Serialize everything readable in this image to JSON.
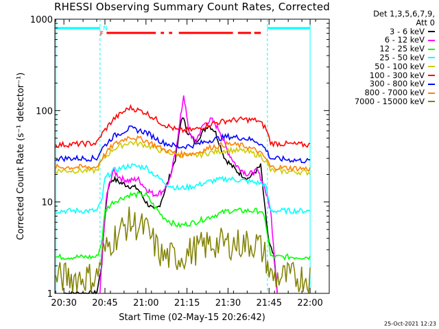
{
  "title": "RHESSI Observing Summary Count Rates, Corrected",
  "legend": {
    "header_line1": "Det 1,3,5,6,7,9,",
    "header_line2": "Att 0"
  },
  "timestamp": "25-Oct-2021 12:23",
  "chart_data": {
    "type": "line",
    "xlabel": "Start Time (02-May-15 20:26:42)",
    "ylabel": "Corrected Count Rate (s⁻¹ detector⁻¹)",
    "y_scale": "log",
    "ylim": [
      1,
      1000
    ],
    "y_ticks": [
      "1",
      "10",
      "100",
      "1000"
    ],
    "x_ticks": [
      "20:30",
      "20:45",
      "21:00",
      "21:15",
      "21:30",
      "21:45",
      "22:00"
    ],
    "xlim": [
      "20:26:42",
      "22:07:00"
    ],
    "grid": false,
    "legend_position": "right",
    "flags": {
      "N_label": "N",
      "F_label": "F",
      "night_color": "#00ffff",
      "flare_color": "#ff0000"
    },
    "series": [
      {
        "name": "3 - 6 keV",
        "color": "#000000",
        "points": [
          [
            20.5,
            1.0
          ],
          [
            20.7,
            1.0
          ],
          [
            20.73,
            2.0
          ],
          [
            20.75,
            7
          ],
          [
            20.77,
            15
          ],
          [
            20.8,
            18
          ],
          [
            20.85,
            16
          ],
          [
            20.9,
            15
          ],
          [
            20.95,
            14
          ],
          [
            21.0,
            10
          ],
          [
            21.05,
            8
          ],
          [
            21.08,
            9
          ],
          [
            21.12,
            14
          ],
          [
            21.18,
            30
          ],
          [
            21.22,
            90
          ],
          [
            21.25,
            60
          ],
          [
            21.3,
            45
          ],
          [
            21.38,
            70
          ],
          [
            21.42,
            60
          ],
          [
            21.48,
            30
          ],
          [
            21.55,
            22
          ],
          [
            21.62,
            18
          ],
          [
            21.65,
            20
          ],
          [
            21.7,
            25
          ],
          [
            21.72,
            10
          ],
          [
            21.75,
            3.5
          ],
          [
            21.78,
            2.5
          ],
          [
            21.8,
            1.0
          ]
        ]
      },
      {
        "name": "6 - 12 keV",
        "color": "#ff00ff",
        "points": [
          [
            20.72,
            1.0
          ],
          [
            20.74,
            4
          ],
          [
            20.76,
            12
          ],
          [
            20.8,
            22
          ],
          [
            20.85,
            18
          ],
          [
            20.9,
            17
          ],
          [
            20.95,
            18
          ],
          [
            21.0,
            14
          ],
          [
            21.05,
            12
          ],
          [
            21.1,
            13
          ],
          [
            21.15,
            18
          ],
          [
            21.2,
            60
          ],
          [
            21.23,
            150
          ],
          [
            21.26,
            60
          ],
          [
            21.3,
            45
          ],
          [
            21.35,
            70
          ],
          [
            21.4,
            80
          ],
          [
            21.45,
            60
          ],
          [
            21.5,
            35
          ],
          [
            21.55,
            25
          ],
          [
            21.62,
            20
          ],
          [
            21.68,
            22
          ],
          [
            21.72,
            15
          ],
          [
            21.76,
            8
          ],
          [
            21.78,
            3
          ],
          [
            21.8,
            1.0
          ]
        ]
      },
      {
        "name": "12 - 25 keV",
        "color": "#00ff00",
        "points": [
          [
            20.45,
            2.5
          ],
          [
            20.7,
            2.5
          ],
          [
            20.73,
            3.5
          ],
          [
            20.75,
            8
          ],
          [
            20.8,
            10
          ],
          [
            20.9,
            12
          ],
          [
            21.0,
            12
          ],
          [
            21.05,
            9
          ],
          [
            21.1,
            7
          ],
          [
            21.15,
            6
          ],
          [
            21.2,
            5.5
          ],
          [
            21.3,
            6
          ],
          [
            21.4,
            7
          ],
          [
            21.5,
            8
          ],
          [
            21.6,
            8
          ],
          [
            21.7,
            8
          ],
          [
            21.73,
            6
          ],
          [
            21.76,
            2.5
          ],
          [
            22.0,
            2.5
          ]
        ]
      },
      {
        "name": "25 - 50 keV",
        "color": "#00ffff",
        "points": [
          [
            20.45,
            8
          ],
          [
            20.7,
            8
          ],
          [
            20.73,
            10
          ],
          [
            20.75,
            18
          ],
          [
            20.8,
            22
          ],
          [
            20.9,
            25
          ],
          [
            21.0,
            24
          ],
          [
            21.05,
            20
          ],
          [
            21.1,
            17
          ],
          [
            21.15,
            15
          ],
          [
            21.2,
            14
          ],
          [
            21.3,
            15
          ],
          [
            21.4,
            17
          ],
          [
            21.5,
            18
          ],
          [
            21.6,
            17
          ],
          [
            21.7,
            16
          ],
          [
            21.73,
            15
          ],
          [
            21.76,
            8
          ],
          [
            22.0,
            8
          ]
        ]
      },
      {
        "name": "50 - 100 keV",
        "color": "#cccc00",
        "points": [
          [
            20.45,
            22
          ],
          [
            20.7,
            22
          ],
          [
            20.73,
            28
          ],
          [
            20.8,
            38
          ],
          [
            20.9,
            45
          ],
          [
            21.0,
            42
          ],
          [
            21.1,
            36
          ],
          [
            21.2,
            33
          ],
          [
            21.3,
            32
          ],
          [
            21.4,
            35
          ],
          [
            21.5,
            37
          ],
          [
            21.6,
            36
          ],
          [
            21.7,
            32
          ],
          [
            21.73,
            28
          ],
          [
            21.76,
            22
          ],
          [
            22.0,
            21
          ]
        ]
      },
      {
        "name": "100 - 300 keV",
        "color": "#ff0000",
        "points": [
          [
            20.45,
            42
          ],
          [
            20.7,
            44
          ],
          [
            20.73,
            55
          ],
          [
            20.8,
            80
          ],
          [
            20.9,
            108
          ],
          [
            21.0,
            95
          ],
          [
            21.1,
            72
          ],
          [
            21.2,
            60
          ],
          [
            21.3,
            62
          ],
          [
            21.4,
            72
          ],
          [
            21.5,
            78
          ],
          [
            21.6,
            80
          ],
          [
            21.68,
            78
          ],
          [
            21.73,
            65
          ],
          [
            21.76,
            44
          ],
          [
            22.0,
            42
          ]
        ]
      },
      {
        "name": "300 - 800 keV",
        "color": "#0000ff",
        "points": [
          [
            20.45,
            30
          ],
          [
            20.7,
            30
          ],
          [
            20.73,
            38
          ],
          [
            20.8,
            52
          ],
          [
            20.9,
            64
          ],
          [
            21.0,
            58
          ],
          [
            21.1,
            45
          ],
          [
            21.2,
            40
          ],
          [
            21.3,
            42
          ],
          [
            21.4,
            48
          ],
          [
            21.5,
            52
          ],
          [
            21.6,
            50
          ],
          [
            21.68,
            46
          ],
          [
            21.73,
            38
          ],
          [
            21.76,
            30
          ],
          [
            22.0,
            28
          ]
        ]
      },
      {
        "name": "800 - 7000 keV",
        "color": "#ff8000",
        "points": [
          [
            20.45,
            24
          ],
          [
            20.7,
            24
          ],
          [
            20.73,
            30
          ],
          [
            20.8,
            42
          ],
          [
            20.9,
            52
          ],
          [
            21.0,
            47
          ],
          [
            21.1,
            38
          ],
          [
            21.2,
            33
          ],
          [
            21.3,
            34
          ],
          [
            21.4,
            40
          ],
          [
            21.5,
            43
          ],
          [
            21.6,
            41
          ],
          [
            21.68,
            36
          ],
          [
            21.73,
            30
          ],
          [
            21.76,
            24
          ],
          [
            22.0,
            23
          ]
        ]
      },
      {
        "name": "7000 - 15000 keV",
        "color": "#808000",
        "points": [
          [
            20.45,
            1.5
          ],
          [
            20.7,
            1.5
          ],
          [
            20.73,
            2.5
          ],
          [
            20.8,
            4
          ],
          [
            20.9,
            6
          ],
          [
            21.0,
            5
          ],
          [
            21.05,
            3.5
          ],
          [
            21.1,
            2.5
          ],
          [
            21.2,
            2.5
          ],
          [
            21.3,
            3
          ],
          [
            21.4,
            3.5
          ],
          [
            21.5,
            3.5
          ],
          [
            21.6,
            3.5
          ],
          [
            21.68,
            3.5
          ],
          [
            21.73,
            2.5
          ],
          [
            21.76,
            1.5
          ],
          [
            22.0,
            1.5
          ]
        ]
      }
    ]
  }
}
